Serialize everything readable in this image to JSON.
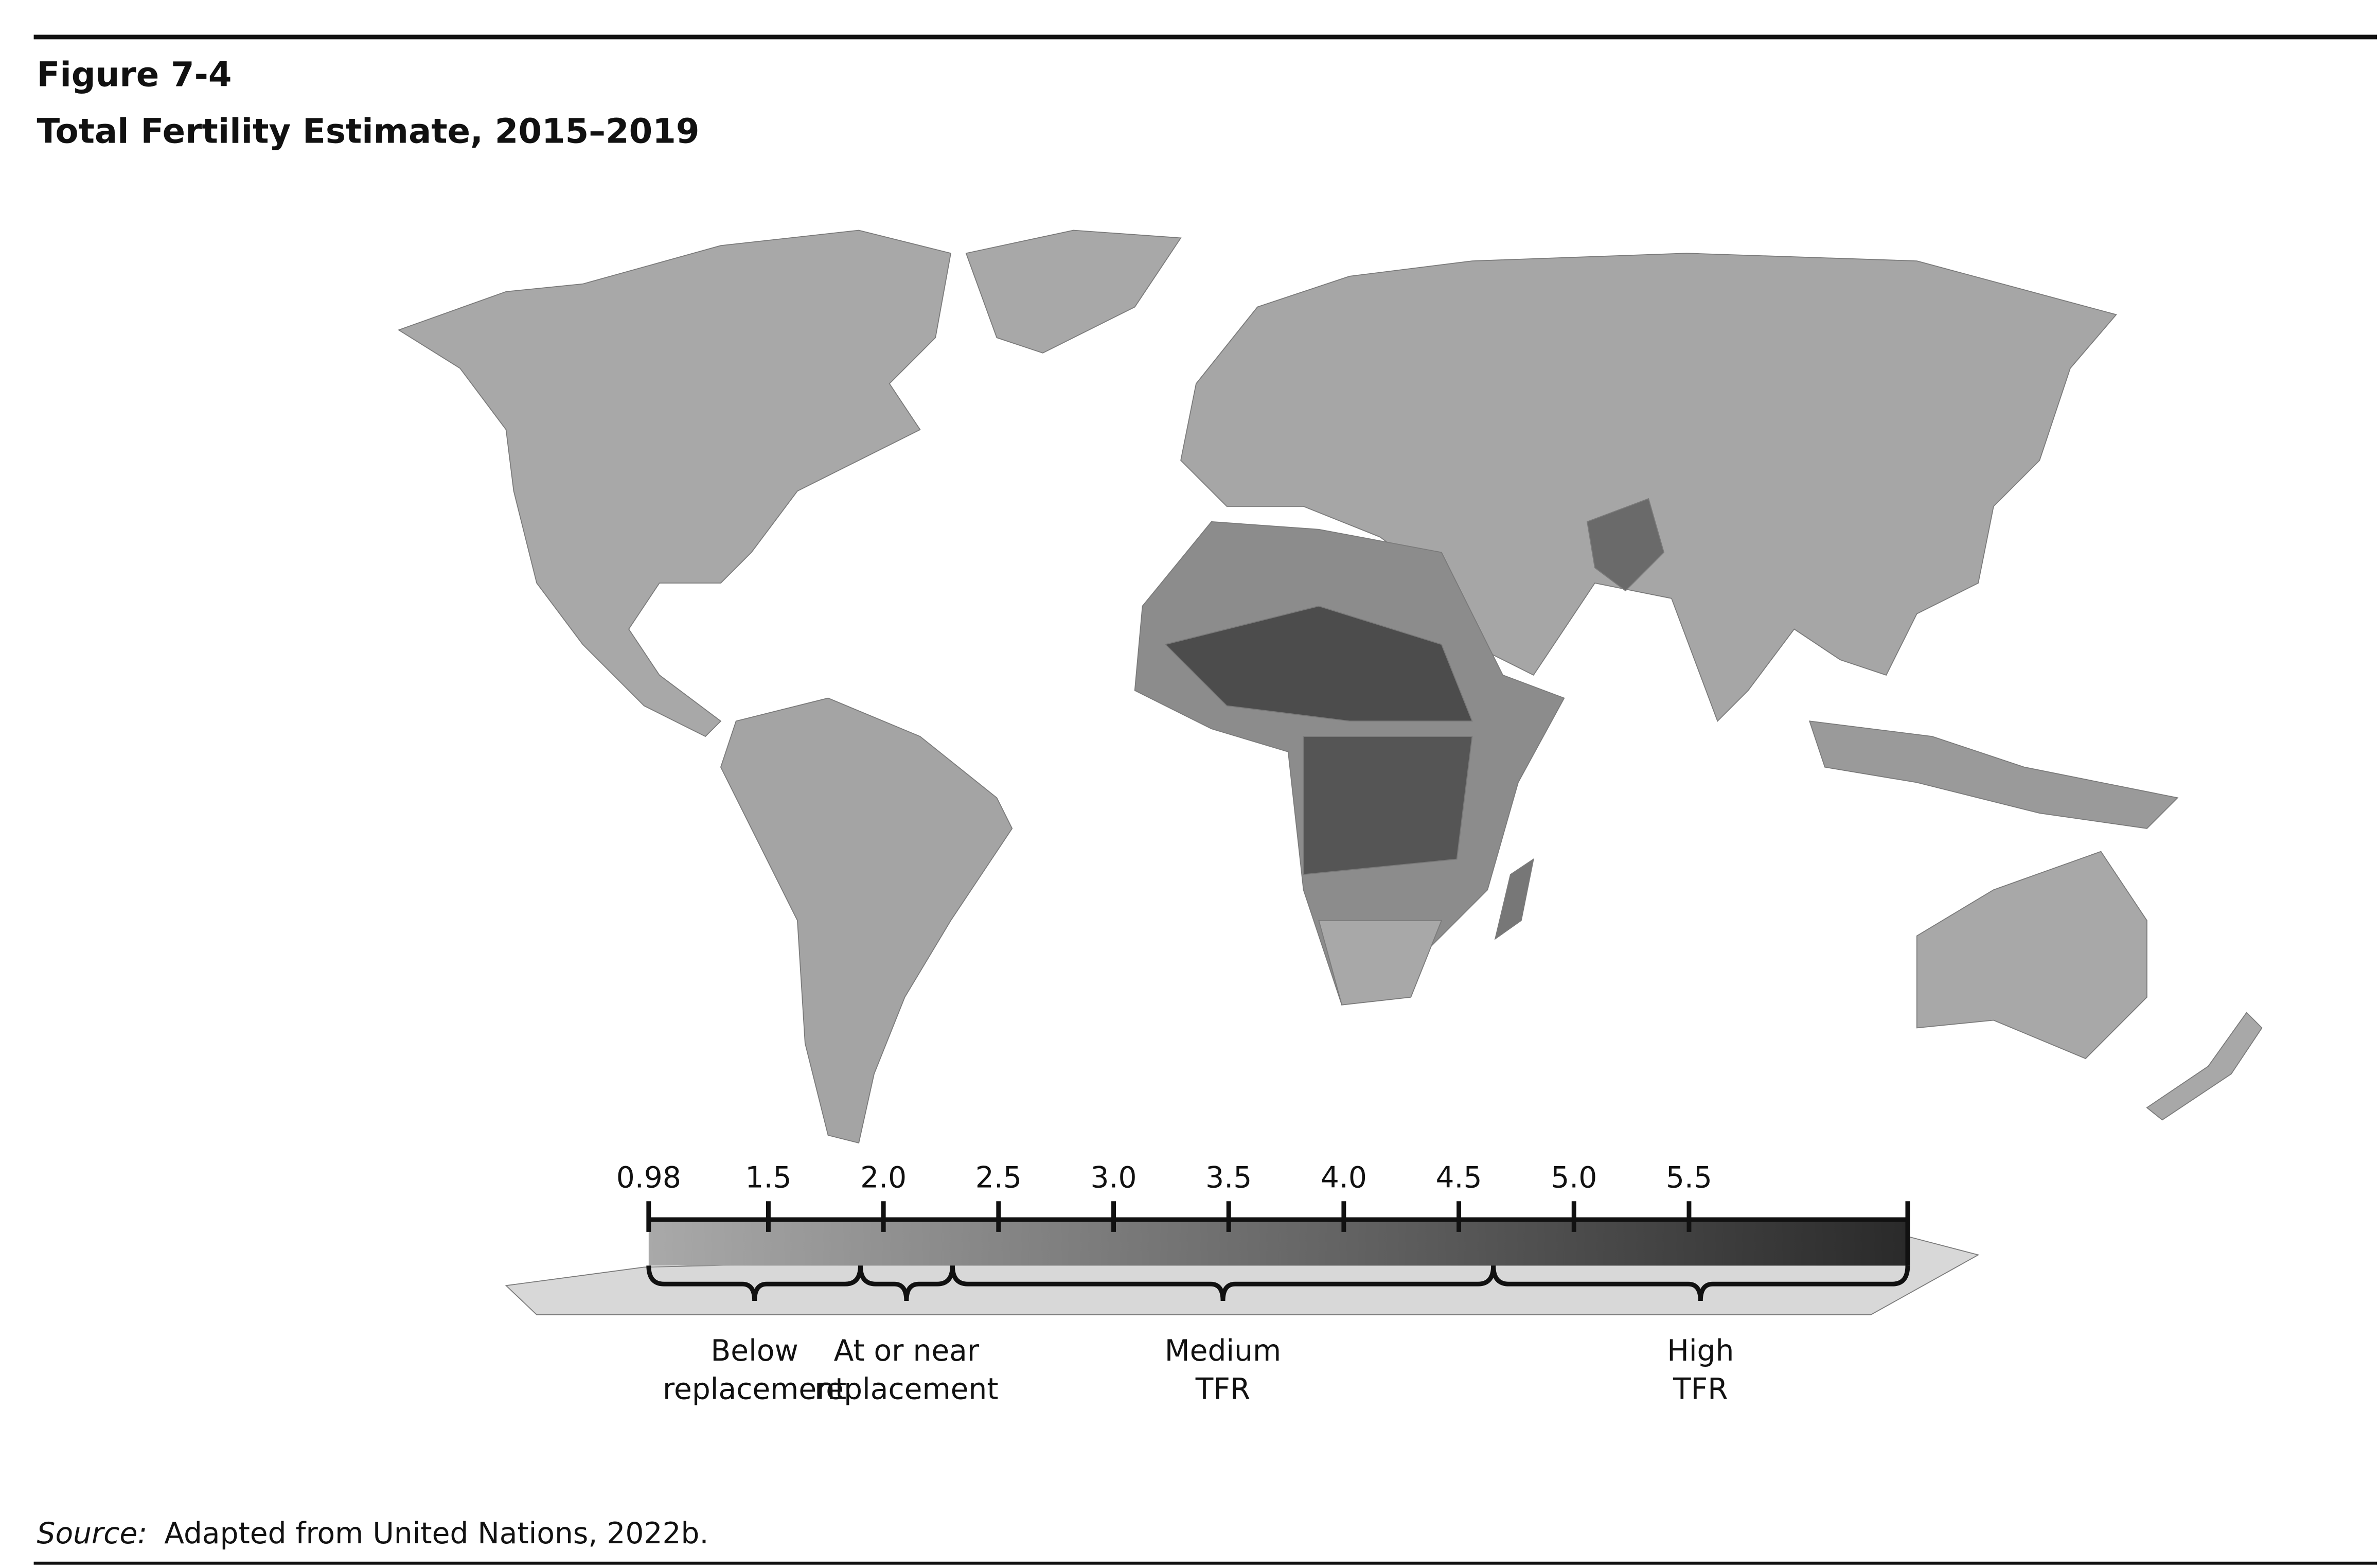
{
  "header": {
    "figure": "Figure 7-4",
    "title": "Total Fertility Estimate, 2015–2019"
  },
  "legend": {
    "colors": [
      "#a9a9a9",
      "#2a2a2a"
    ],
    "xlim": [
      0.98,
      6.45
    ],
    "xticks": [
      0.98,
      1.5,
      {
        "value": 2,
        "label": "2.0"
      },
      2.5,
      {
        "value": 3,
        "label": "3.0"
      },
      3.5,
      {
        "value": 4,
        "label": "4.0"
      },
      4.5,
      {
        "value": 5,
        "label": "5.0"
      },
      5.5
    ],
    "groups": [
      {
        "lines": [
          "Below",
          "replacement"
        ],
        "range": [
          0.98,
          1.9
        ]
      },
      {
        "lines": [
          "At or near",
          "replacement"
        ],
        "range": [
          1.9,
          2.3
        ]
      },
      {
        "lines": [
          "Medium",
          "TFR"
        ],
        "range": [
          2.3,
          4.65
        ]
      },
      {
        "lines": [
          "High",
          "TFR"
        ],
        "range": [
          4.65,
          6.45
        ]
      }
    ]
  },
  "source": {
    "prefix": "Source:",
    "text": "Adapted from United Nations, 2022b."
  }
}
